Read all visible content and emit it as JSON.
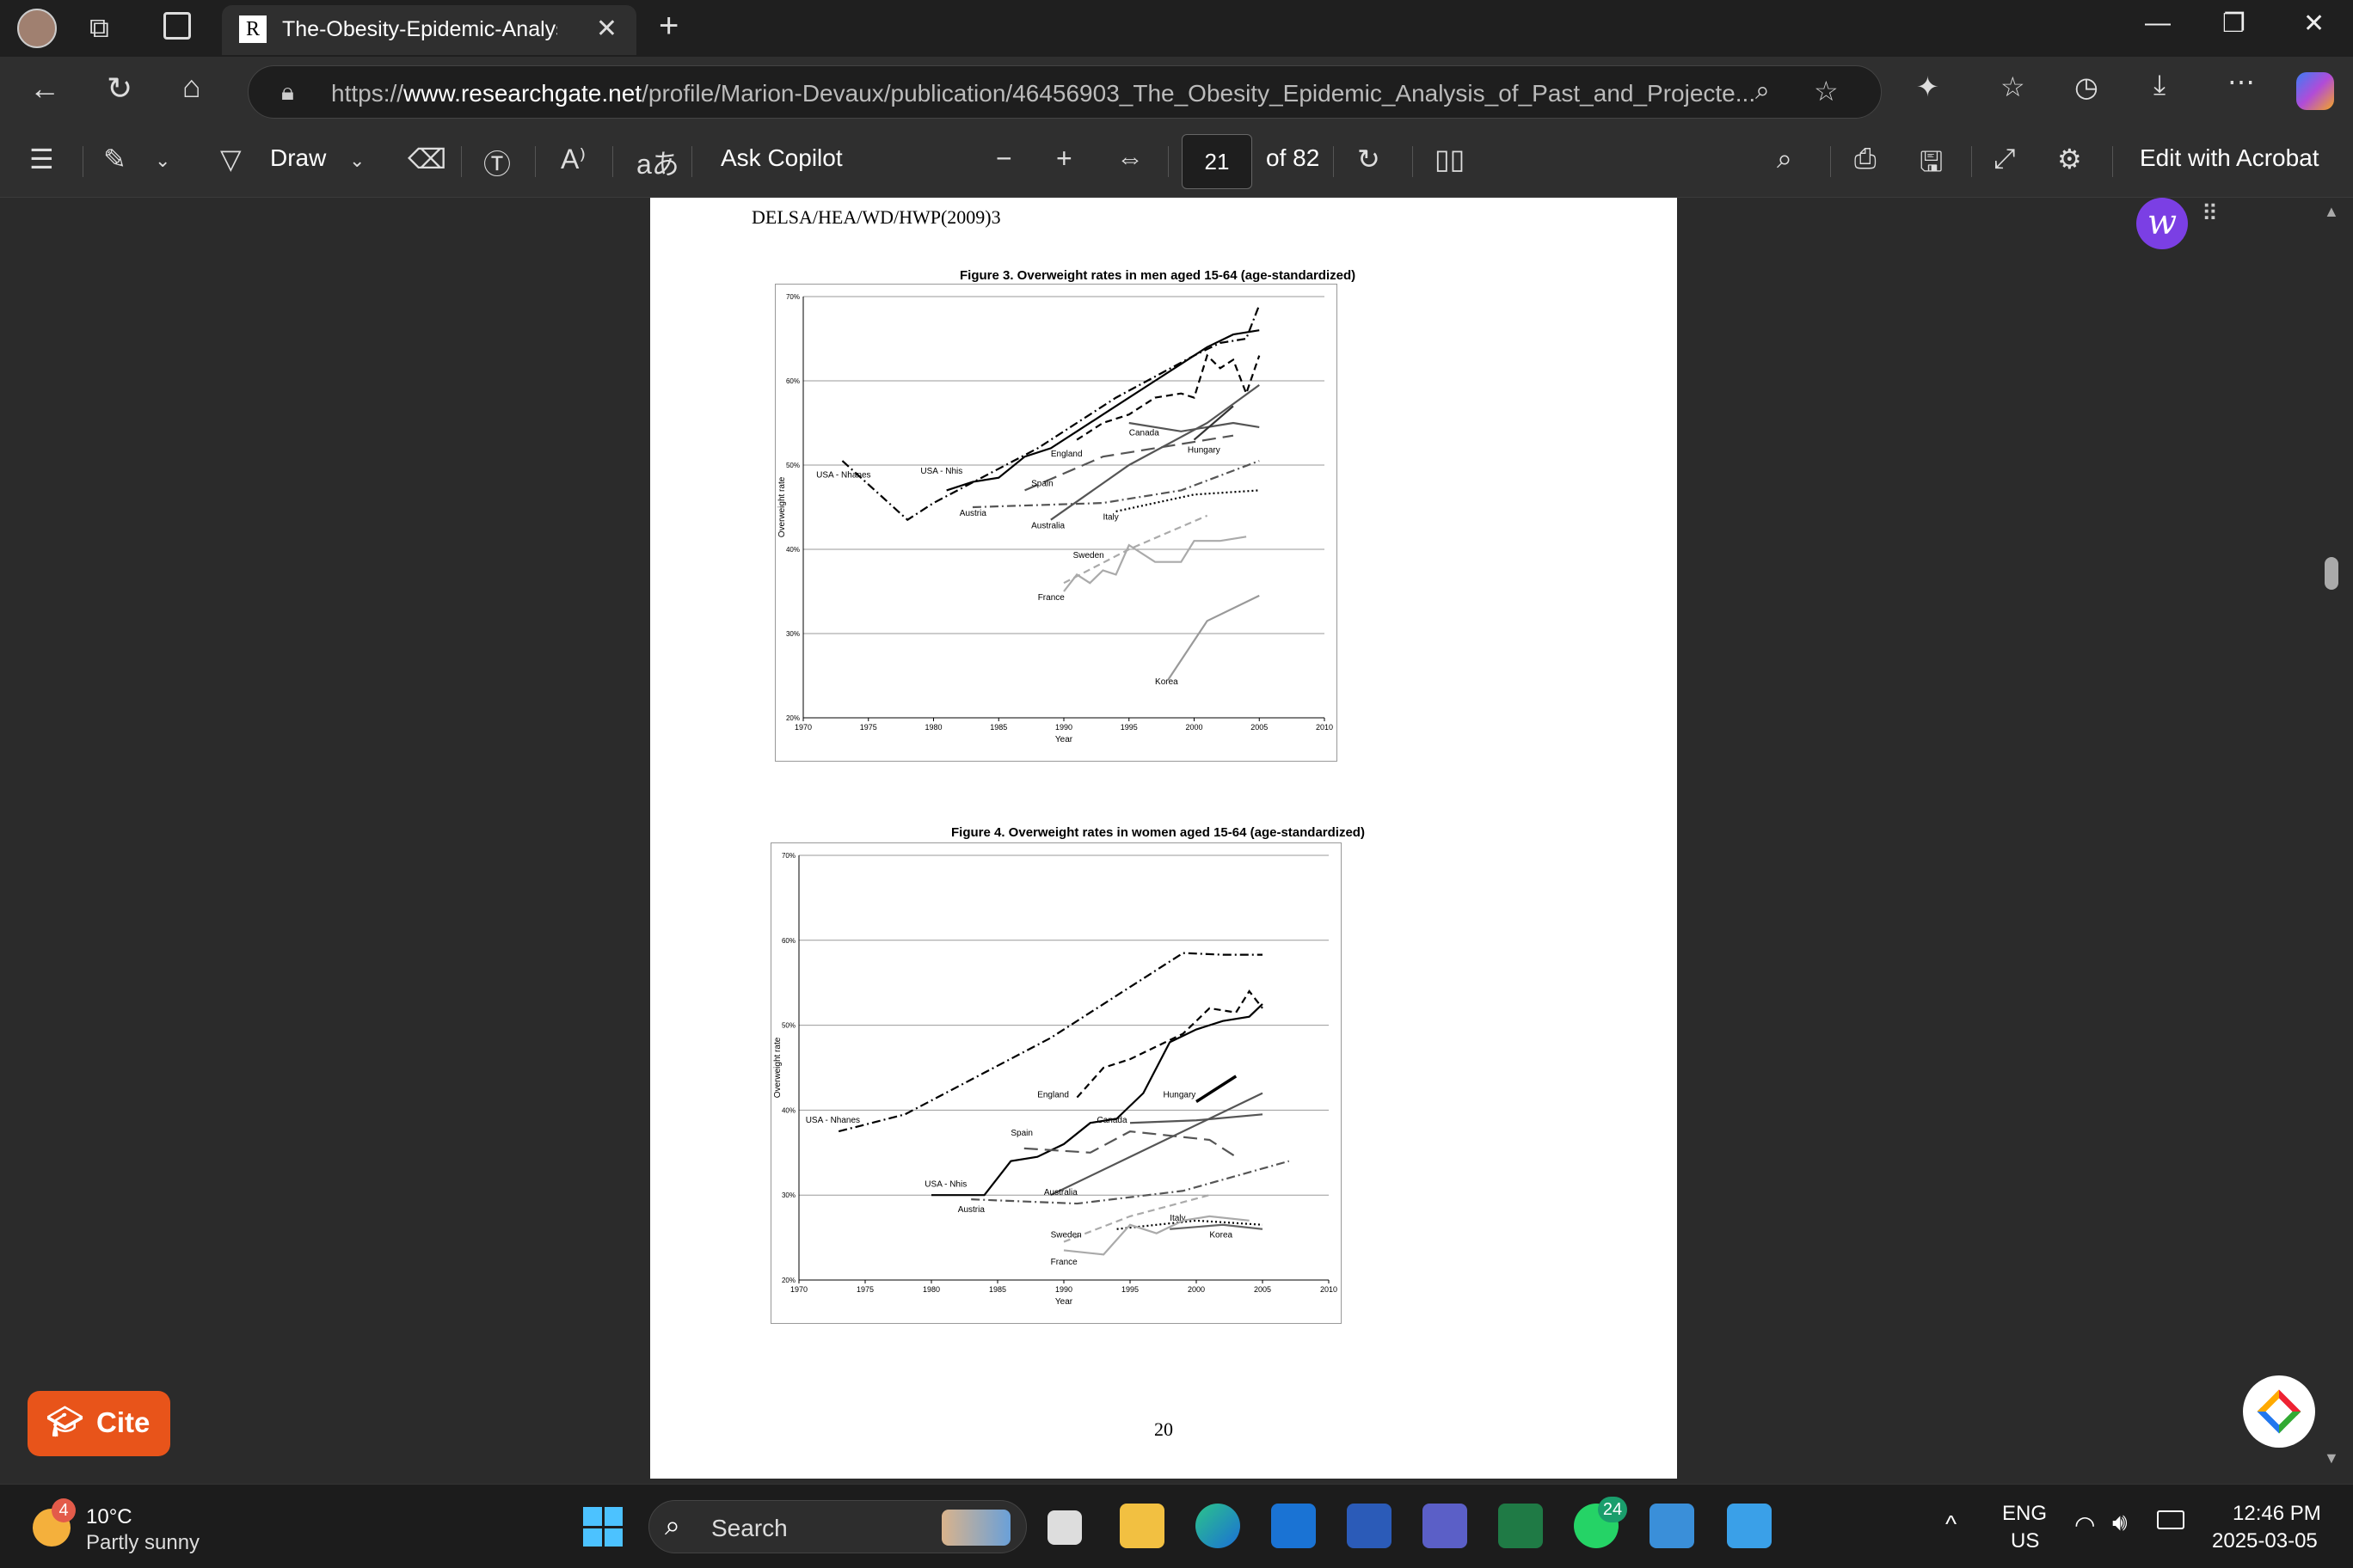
{
  "browser": {
    "tab_title": "The-Obesity-Epidemic-Analysis-o",
    "url_prefix": "https://",
    "url_host": "www.researchgate.net",
    "url_path": "/profile/Marion-Devaux/publication/46456903_The_Obesity_Epidemic_Analysis_of_Past_and_Projecte..."
  },
  "pdf_toolbar": {
    "draw_label": "Draw",
    "copilot_label": "Ask Copilot",
    "page_current": "21",
    "page_total": "of 82",
    "acrobat_label": "Edit with Acrobat"
  },
  "document": {
    "header": "DELSA/HEA/WD/HWP(2009)3",
    "page_number": "20"
  },
  "chart_data": [
    {
      "type": "line",
      "title": "Figure 3.   Overweight rates in men aged 15-64 (age-standardized)",
      "xlabel": "Year",
      "ylabel": "Overweight rate",
      "xlim": [
        1970,
        2010
      ],
      "ylim": [
        20,
        70
      ],
      "xticks": [
        "1970",
        "1975",
        "1980",
        "1985",
        "1990",
        "1995",
        "2000",
        "2005",
        "2010"
      ],
      "yticks": [
        "20%",
        "30%",
        "40%",
        "50%",
        "60%",
        "70%"
      ],
      "grid": "horizontal",
      "series": [
        {
          "name": "USA - Nhanes",
          "color": "#000000",
          "style": "dashdot",
          "x": [
            1973,
            1978,
            1980,
            1988,
            1994,
            2000,
            2002,
            2004,
            2005
          ],
          "y": [
            50.5,
            43.5,
            45.5,
            52,
            58,
            63,
            64.5,
            65,
            69
          ]
        },
        {
          "name": "USA - Nhis",
          "color": "#000000",
          "style": "solid",
          "x": [
            1981,
            1983,
            1985,
            1987,
            1989,
            1991,
            1993,
            1995,
            1997,
            1999,
            2001,
            2003,
            2005
          ],
          "y": [
            47,
            48,
            48.5,
            51,
            52,
            54,
            56,
            58,
            60,
            62,
            64,
            65.5,
            66
          ]
        },
        {
          "name": "England",
          "color": "#000000",
          "style": "dash",
          "x": [
            1991,
            1993,
            1995,
            1997,
            1999,
            2000,
            2001,
            2002,
            2003,
            2004,
            2005
          ],
          "y": [
            53,
            55,
            56,
            58,
            58.5,
            58,
            63,
            61.5,
            62.5,
            58.5,
            63
          ]
        },
        {
          "name": "Canada",
          "color": "#555555",
          "style": "solid",
          "x": [
            1995,
            1999,
            2003,
            2005
          ],
          "y": [
            55,
            54,
            55,
            54.5
          ]
        },
        {
          "name": "Hungary",
          "color": "#333333",
          "style": "solid",
          "x": [
            2000,
            2003
          ],
          "y": [
            53,
            57
          ]
        },
        {
          "name": "Spain",
          "color": "#555555",
          "style": "longdash",
          "x": [
            1987,
            1993,
            1997,
            2001,
            2003
          ],
          "y": [
            47,
            51,
            52,
            53,
            53.5
          ]
        },
        {
          "name": "Australia",
          "color": "#555555",
          "style": "solid",
          "x": [
            1989,
            1995,
            2001,
            2005
          ],
          "y": [
            43.5,
            50,
            55,
            59.5
          ]
        },
        {
          "name": "Austria",
          "color": "#555555",
          "style": "dashdot",
          "x": [
            1983,
            1993,
            1999,
            2005
          ],
          "y": [
            45,
            45.5,
            47,
            50.5
          ]
        },
        {
          "name": "Italy",
          "color": "#000000",
          "style": "dot",
          "x": [
            1994,
            2000,
            2005
          ],
          "y": [
            44.5,
            46.5,
            47
          ]
        },
        {
          "name": "Sweden",
          "color": "#aaaaaa",
          "style": "dash",
          "x": [
            1990,
            1995,
            2001
          ],
          "y": [
            36,
            40,
            44
          ]
        },
        {
          "name": "France",
          "color": "#aaaaaa",
          "style": "solid",
          "x": [
            1990,
            1991,
            1992,
            1993,
            1994,
            1995,
            1997,
            1999,
            2000,
            2002,
            2004
          ],
          "y": [
            35,
            37,
            36,
            37.5,
            37,
            40.5,
            38.5,
            38.5,
            41,
            41,
            41.5
          ]
        },
        {
          "name": "Korea",
          "color": "#999999",
          "style": "solid",
          "x": [
            1998,
            2001,
            2005
          ],
          "y": [
            24.5,
            31.5,
            34.5
          ]
        }
      ]
    },
    {
      "type": "line",
      "title": "Figure 4.   Overweight rates in women aged 15-64 (age-standardized)",
      "xlabel": "Year",
      "ylabel": "Overweight rate",
      "xlim": [
        1970,
        2010
      ],
      "ylim": [
        20,
        70
      ],
      "xticks": [
        "1970",
        "1975",
        "1980",
        "1985",
        "1990",
        "1995",
        "2000",
        "2005",
        "2010"
      ],
      "yticks": [
        "20%",
        "30%",
        "40%",
        "50%",
        "60%",
        "70%"
      ],
      "grid": "horizontal",
      "series": [
        {
          "name": "USA - Nhanes",
          "color": "#000000",
          "style": "dashdot",
          "x": [
            1973,
            1978,
            1989,
            1999,
            2002,
            2005
          ],
          "y": [
            37.5,
            39.5,
            48.5,
            58.5,
            58.3,
            58.3
          ]
        },
        {
          "name": "USA - Nhis",
          "color": "#000000",
          "style": "solid",
          "x": [
            1980,
            1984,
            1986,
            1988,
            1990,
            1992,
            1994,
            1996,
            1998,
            2000,
            2002,
            2004,
            2005
          ],
          "y": [
            30,
            30,
            34,
            34.5,
            36,
            38.5,
            39,
            42,
            48,
            49.5,
            50.5,
            51,
            52.5
          ]
        },
        {
          "name": "England",
          "color": "#000000",
          "style": "dash",
          "x": [
            1991,
            1993,
            1995,
            1997,
            1999,
            2001,
            2003,
            2004,
            2005
          ],
          "y": [
            41.5,
            45,
            46,
            47.5,
            49,
            52,
            51.5,
            54,
            52
          ]
        },
        {
          "name": "Hungary",
          "color": "#000000",
          "style": "solid",
          "x": [
            2000,
            2003
          ],
          "y": [
            41,
            44
          ]
        },
        {
          "name": "Canada",
          "color": "#555555",
          "style": "solid",
          "x": [
            1995,
            2000,
            2005
          ],
          "y": [
            38.5,
            38.8,
            39.5
          ]
        },
        {
          "name": "Spain",
          "color": "#555555",
          "style": "longdash",
          "x": [
            1987,
            1992,
            1995,
            2001,
            2003
          ],
          "y": [
            35.5,
            35,
            37.5,
            36.5,
            34.5
          ]
        },
        {
          "name": "Australia",
          "color": "#555555",
          "style": "solid",
          "x": [
            1989,
            1995,
            2001,
            2005
          ],
          "y": [
            30,
            34.5,
            39,
            42
          ]
        },
        {
          "name": "Austria",
          "color": "#555555",
          "style": "dashdot",
          "x": [
            1983,
            1991,
            1999,
            2007
          ],
          "y": [
            29.5,
            29,
            30.5,
            34
          ]
        },
        {
          "name": "Italy",
          "color": "#000000",
          "style": "dot",
          "x": [
            1994,
            2000,
            2005
          ],
          "y": [
            26,
            27,
            26.5
          ]
        },
        {
          "name": "Sweden",
          "color": "#aaaaaa",
          "style": "dash",
          "x": [
            1990,
            1995,
            2001
          ],
          "y": [
            24.5,
            27.5,
            30
          ]
        },
        {
          "name": "France",
          "color": "#aaaaaa",
          "style": "solid",
          "x": [
            1990,
            1993,
            1995,
            1997,
            1999,
            2001,
            2004
          ],
          "y": [
            23.5,
            23,
            26.5,
            25.5,
            27,
            27.5,
            27
          ]
        },
        {
          "name": "Korea",
          "color": "#666666",
          "style": "solid",
          "x": [
            1998,
            2002,
            2005
          ],
          "y": [
            26,
            26.5,
            26
          ]
        }
      ]
    }
  ],
  "chart_labels": [
    {
      "items": [
        "USA - Nhanes",
        "USA - Nhis",
        "Austria",
        "Spain",
        "England",
        "Canada",
        "Hungary",
        "Australia",
        "Italy",
        "Sweden",
        "France",
        "Korea"
      ]
    },
    {
      "items": [
        "USA - Nhanes",
        "USA - Nhis",
        "Austria",
        "Spain",
        "England",
        "Canada",
        "Hungary",
        "Australia",
        "Italy",
        "Sweden",
        "France",
        "Korea"
      ]
    }
  ],
  "side": {
    "cite_label": "Cite"
  },
  "taskbar": {
    "weather_temp": "10°C",
    "weather_desc": "Partly sunny",
    "weather_badge": "4",
    "search_label": "Search",
    "whatsapp_badge": "24",
    "lang_top": "ENG",
    "lang_bottom": "US",
    "time": "12:46 PM",
    "date": "2025-03-05"
  }
}
